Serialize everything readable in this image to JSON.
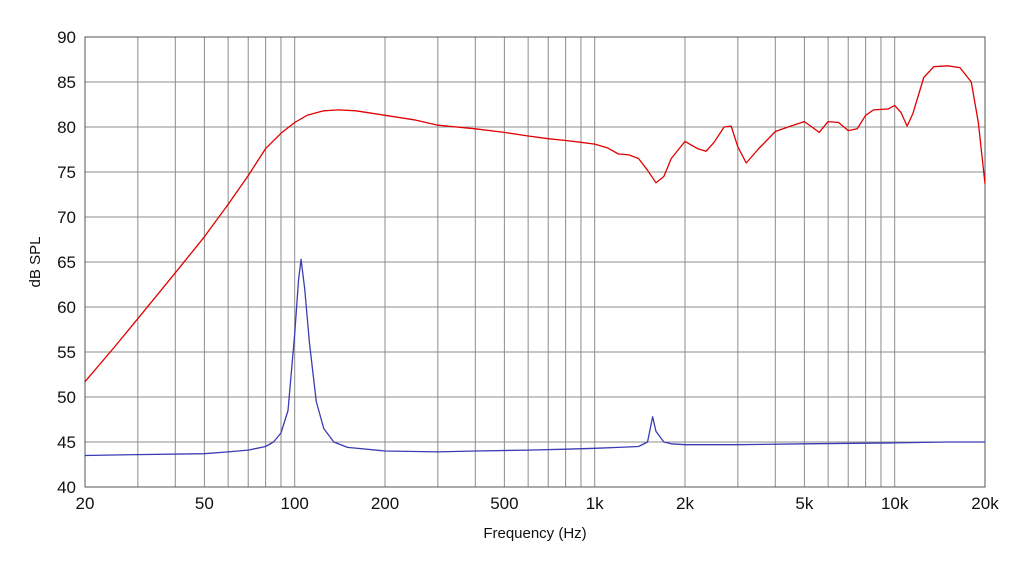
{
  "chart_data": {
    "type": "line",
    "title": "",
    "xlabel": "Frequency (Hz)",
    "ylabel": "dB SPL",
    "x_scale": "log",
    "xlim": [
      20,
      20000
    ],
    "ylim": [
      40,
      90
    ],
    "grid": true,
    "legend": "none",
    "x_tick_labels": [
      {
        "value": 20,
        "label": "20"
      },
      {
        "value": 50,
        "label": "50"
      },
      {
        "value": 100,
        "label": "100"
      },
      {
        "value": 200,
        "label": "200"
      },
      {
        "value": 500,
        "label": "500"
      },
      {
        "value": 1000,
        "label": "1k"
      },
      {
        "value": 2000,
        "label": "2k"
      },
      {
        "value": 5000,
        "label": "5k"
      },
      {
        "value": 10000,
        "label": "10k"
      },
      {
        "value": 20000,
        "label": "20k"
      }
    ],
    "y_ticks": [
      40,
      45,
      50,
      55,
      60,
      65,
      70,
      75,
      80,
      85,
      90
    ],
    "series": [
      {
        "color": "#e00000",
        "points": [
          [
            20,
            51.7
          ],
          [
            25,
            55.5
          ],
          [
            30,
            58.7
          ],
          [
            40,
            63.8
          ],
          [
            50,
            67.8
          ],
          [
            60,
            71.4
          ],
          [
            70,
            74.6
          ],
          [
            80,
            77.6
          ],
          [
            90,
            79.3
          ],
          [
            100,
            80.5
          ],
          [
            110,
            81.3
          ],
          [
            125,
            81.8
          ],
          [
            140,
            81.9
          ],
          [
            160,
            81.8
          ],
          [
            200,
            81.3
          ],
          [
            250,
            80.8
          ],
          [
            300,
            80.2
          ],
          [
            400,
            79.8
          ],
          [
            500,
            79.4
          ],
          [
            600,
            79.0
          ],
          [
            700,
            78.7
          ],
          [
            800,
            78.5
          ],
          [
            900,
            78.3
          ],
          [
            1000,
            78.1
          ],
          [
            1100,
            77.7
          ],
          [
            1200,
            77.0
          ],
          [
            1300,
            76.9
          ],
          [
            1400,
            76.5
          ],
          [
            1500,
            75.2
          ],
          [
            1600,
            73.8
          ],
          [
            1700,
            74.5
          ],
          [
            1800,
            76.5
          ],
          [
            2000,
            78.4
          ],
          [
            2200,
            77.6
          ],
          [
            2350,
            77.3
          ],
          [
            2500,
            78.3
          ],
          [
            2700,
            80.0
          ],
          [
            2850,
            80.1
          ],
          [
            3000,
            77.8
          ],
          [
            3200,
            76.0
          ],
          [
            3500,
            77.5
          ],
          [
            4000,
            79.5
          ],
          [
            4500,
            80.1
          ],
          [
            5000,
            80.6
          ],
          [
            5300,
            80.0
          ],
          [
            5600,
            79.4
          ],
          [
            6000,
            80.6
          ],
          [
            6500,
            80.5
          ],
          [
            7000,
            79.6
          ],
          [
            7500,
            79.8
          ],
          [
            8000,
            81.3
          ],
          [
            8500,
            81.9
          ],
          [
            9500,
            82.0
          ],
          [
            10000,
            82.4
          ],
          [
            10500,
            81.6
          ],
          [
            11000,
            80.1
          ],
          [
            11500,
            81.5
          ],
          [
            12500,
            85.5
          ],
          [
            13500,
            86.7
          ],
          [
            15000,
            86.8
          ],
          [
            16500,
            86.6
          ],
          [
            18000,
            85.0
          ],
          [
            19000,
            80.5
          ],
          [
            20000,
            73.7
          ]
        ]
      },
      {
        "color": "#3b3bb3",
        "points": [
          [
            20,
            43.5
          ],
          [
            30,
            43.6
          ],
          [
            50,
            43.7
          ],
          [
            60,
            43.9
          ],
          [
            70,
            44.1
          ],
          [
            80,
            44.5
          ],
          [
            85,
            45.0
          ],
          [
            90,
            46.0
          ],
          [
            95,
            48.5
          ],
          [
            100,
            57.0
          ],
          [
            103,
            63.0
          ],
          [
            105,
            65.3
          ],
          [
            108,
            62.0
          ],
          [
            112,
            56.0
          ],
          [
            118,
            49.5
          ],
          [
            125,
            46.5
          ],
          [
            135,
            45.0
          ],
          [
            150,
            44.4
          ],
          [
            200,
            44.0
          ],
          [
            300,
            43.9
          ],
          [
            400,
            44.0
          ],
          [
            600,
            44.1
          ],
          [
            800,
            44.2
          ],
          [
            1000,
            44.3
          ],
          [
            1200,
            44.4
          ],
          [
            1400,
            44.5
          ],
          [
            1500,
            45.0
          ],
          [
            1560,
            47.8
          ],
          [
            1600,
            46.2
          ],
          [
            1700,
            45.0
          ],
          [
            1800,
            44.8
          ],
          [
            2000,
            44.7
          ],
          [
            3000,
            44.7
          ],
          [
            5000,
            44.8
          ],
          [
            10000,
            44.9
          ],
          [
            15000,
            45.0
          ],
          [
            20000,
            45.0
          ]
        ]
      }
    ]
  }
}
